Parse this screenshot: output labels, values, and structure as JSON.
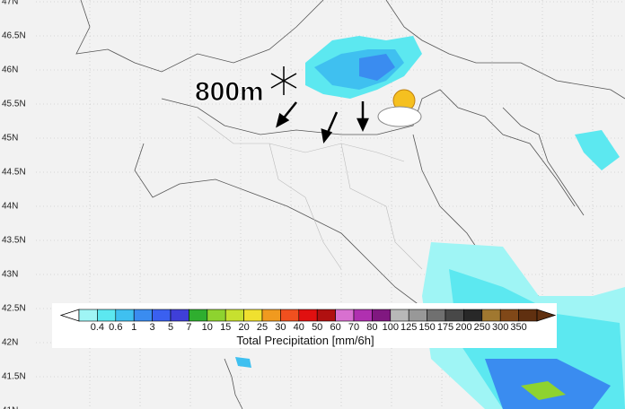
{
  "map": {
    "lat_labels": [
      "47N",
      "46.5N",
      "46N",
      "45.5N",
      "45N",
      "44.5N",
      "44N",
      "43.5N",
      "43N",
      "42.5N",
      "42N",
      "41.5N",
      "41N"
    ],
    "annotation": "800m",
    "colorbar": {
      "title": "Total Precipitation [mm/6h]",
      "levels": [
        0.4,
        0.6,
        1,
        3,
        5,
        7,
        10,
        15,
        20,
        25,
        30,
        40,
        50,
        60,
        70,
        80,
        100,
        125,
        150,
        175,
        200,
        250,
        300,
        350
      ],
      "colors": [
        "#9ff5f5",
        "#5ce8f0",
        "#3fc0f0",
        "#3a8cf0",
        "#3a60f0",
        "#3f3fd8",
        "#2fae2f",
        "#8ed32f",
        "#c7e02f",
        "#f0e02f",
        "#f09a1f",
        "#f0501f",
        "#e01010",
        "#b01010",
        "#d870d0",
        "#b030b0",
        "#801880",
        "#b8b8b8",
        "#989898",
        "#707070",
        "#484848",
        "#282828",
        "#a07830",
        "#804818",
        "#603010"
      ]
    }
  }
}
